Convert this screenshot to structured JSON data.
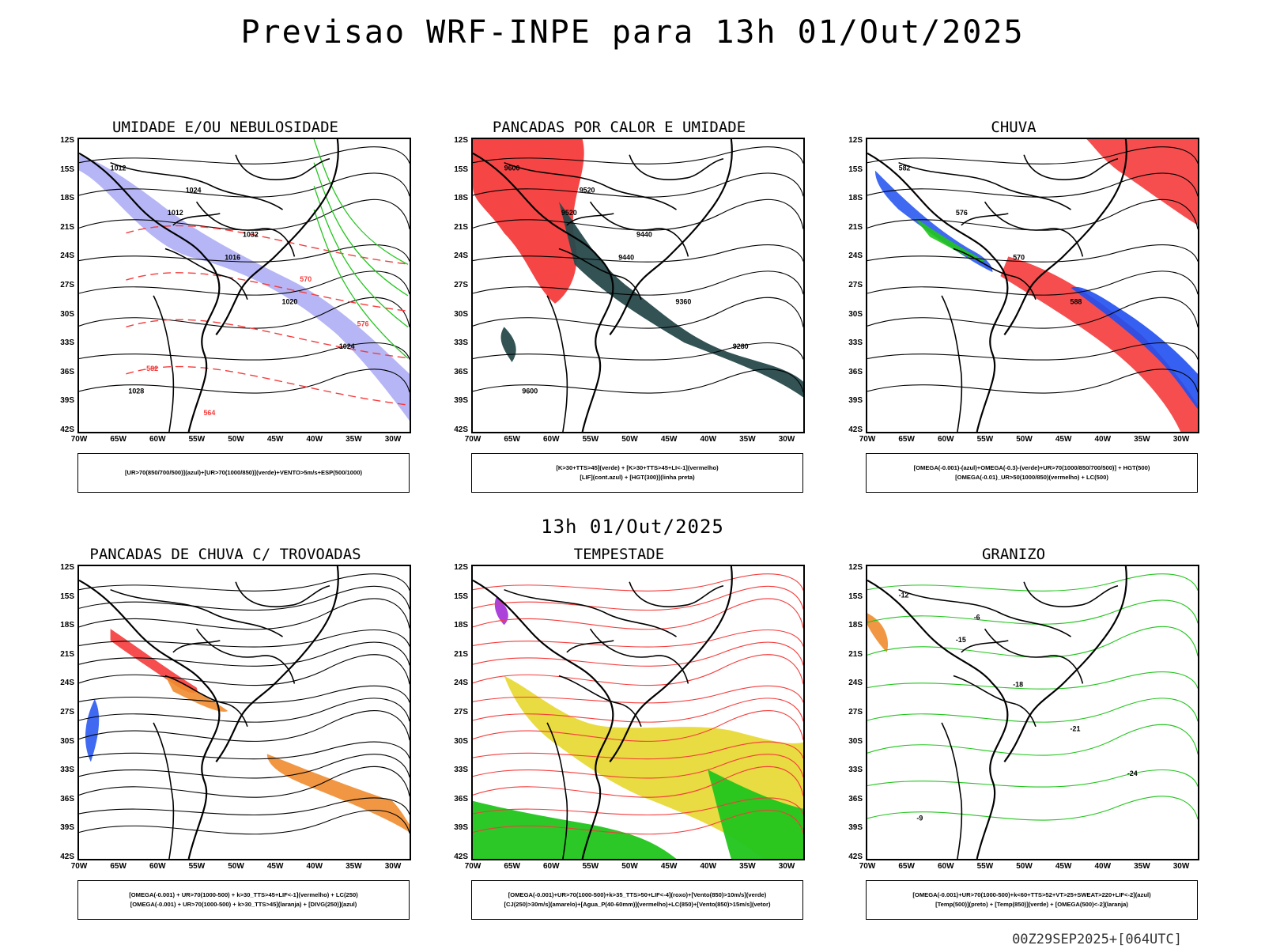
{
  "header": {
    "title": "Previsao WRF-INPE  para 13h 01/Out/2025",
    "mid_time": "13h 01/Out/2025",
    "footer": "00Z29SEP2025+[064UTC]"
  },
  "axes": {
    "lat_labels": [
      "12S",
      "15S",
      "18S",
      "21S",
      "24S",
      "27S",
      "30S",
      "33S",
      "36S",
      "39S",
      "42S"
    ],
    "lon_labels": [
      "70W",
      "65W",
      "60W",
      "55W",
      "50W",
      "45W",
      "40W",
      "35W",
      "30W"
    ]
  },
  "panels": [
    {
      "title": "UMIDADE E/OU NEBULOSIDADE",
      "legend": [
        "[UR>70(850/700/500)](azul)+[UR>70(1000/850)](verde)+VENTO>5m/s+ESP(500/1000)"
      ],
      "contour_labels": [
        "1012",
        "1012",
        "1016",
        "1020",
        "1024",
        "1028",
        "1024",
        "1032",
        "570",
        "576",
        "582",
        "564"
      ]
    },
    {
      "title": "PANCADAS POR CALOR E UMIDADE",
      "legend": [
        "[K>30+TTS>45](verde) + [K>30+TTS>45+LI<-1](vermelho)",
        "[LIF](cont.azul) + [HGT(300)](linha preta)"
      ],
      "contour_labels": [
        "9600",
        "9520",
        "9440",
        "9360",
        "9280",
        "9600",
        "9520",
        "9440"
      ]
    },
    {
      "title": "CHUVA",
      "legend": [
        "[OMEGA(-0.001)-(azul)+OMEGA(-0.3)-(verde)+UR>70(1000/850/700/500)] + HGT(500)",
        "[OMEGA(-0.01)_UR>50(1000/850)(vermelho) + LC(500)"
      ],
      "contour_labels": [
        "582",
        "576",
        "570",
        "588"
      ]
    },
    {
      "title": "PANCADAS DE CHUVA C/ TROVOADAS",
      "legend": [
        "[OMEGA(-0.001) + UR>70(1000-500) + k>30_TTS>45+LIF<-1](vermelho) + LC(250)",
        "[OMEGA(-0.001) + UR>70(1000-500) + k>30_TTS>45](laranja) + [DIVG(250)](azul)"
      ],
      "contour_labels": []
    },
    {
      "title": "TEMPESTADE",
      "legend": [
        "[OMEGA(-0.001)+UR>70(1000-500)+k>35_TTS>50+LIF<-4](roxo)+[Vento(850)>10m/s](verde)",
        "[CJ(250)>30m/s](amarelo)+[Agua_P(40-60mm)](vermelho)+LC(850)+[Vento(850)>15m/s](vetor)"
      ],
      "contour_labels": []
    },
    {
      "title": "GRANIZO",
      "legend": [
        "[OMEGA(-0.001)+UR>70(1000-500)+k<60+TTS>52+VT>25+SWEAT>220+LIF<-2](azul)",
        "[Temp(500)](preto) + [Temp(850)](verde) + [OMEGA(500)<-2](laranja)"
      ],
      "contour_labels": [
        "-12",
        "-15",
        "-18",
        "-21",
        "-24",
        "-9",
        "-6"
      ]
    }
  ],
  "colors": {
    "blue_fill": "#a9a9f5",
    "red": "#f53b3b",
    "green": "#21c51c",
    "dark_teal": "#27494b",
    "orange": "#f08c2f",
    "yellow": "#e8d938",
    "purple": "#a22fd6",
    "blue": "#1f4ff0"
  }
}
